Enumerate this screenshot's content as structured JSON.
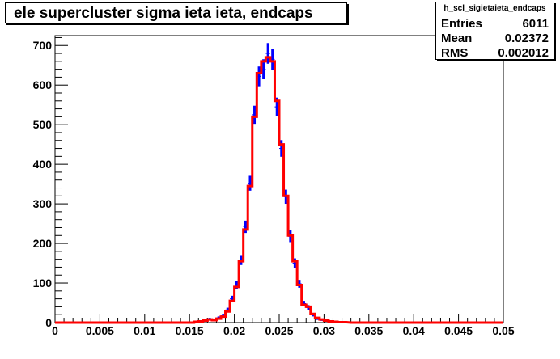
{
  "title": "ele supercluster sigma ieta ieta, endcaps",
  "stats": {
    "name": "h_scl_sigietaieta_endcaps",
    "rows": [
      {
        "label": "Entries",
        "value": "6011"
      },
      {
        "label": "Mean",
        "value": "0.02372"
      },
      {
        "label": "RMS",
        "value": "0.002012"
      }
    ]
  },
  "colors": {
    "data_errors": "#0000ff",
    "reference_hist": "#ff0000"
  },
  "chart_data": {
    "type": "line",
    "title": "ele supercluster sigma ieta ieta, endcaps",
    "xlabel": "",
    "ylabel": "",
    "xlim": [
      0,
      0.05
    ],
    "ylim": [
      0,
      725
    ],
    "xticks": [
      "0",
      "0.005",
      "0.01",
      "0.015",
      "0.02",
      "0.025",
      "0.03",
      "0.035",
      "0.04",
      "0.045",
      "0.05"
    ],
    "yticks": [
      "0",
      "100",
      "200",
      "300",
      "400",
      "500",
      "600",
      "700"
    ],
    "bin_width": 0.0005,
    "bin_edges_x": [
      0.0155,
      0.016,
      0.0165,
      0.017,
      0.0175,
      0.018,
      0.0185,
      0.019,
      0.0195,
      0.02,
      0.0205,
      0.021,
      0.0215,
      0.022,
      0.0225,
      0.023,
      0.0235,
      0.024,
      0.0245,
      0.025,
      0.0255,
      0.026,
      0.0265,
      0.027,
      0.0275,
      0.028,
      0.0285,
      0.029,
      0.0295,
      0.03,
      0.0305,
      0.031,
      0.0315,
      0.032,
      0.0325
    ],
    "series": [
      {
        "values": [
          2,
          3,
          5,
          8,
          6,
          10,
          15,
          28,
          55,
          90,
          155,
          235,
          345,
          520,
          630,
          660,
          670,
          660,
          560,
          450,
          320,
          220,
          155,
          95,
          45,
          40,
          22,
          12,
          8,
          5,
          3,
          2,
          1,
          1
        ],
        "style": "step"
      },
      {
        "values": [
          3,
          4,
          6,
          9,
          7,
          12,
          18,
          32,
          60,
          95,
          158,
          242,
          352,
          525,
          622,
          640,
          680,
          665,
          545,
          440,
          318,
          218,
          150,
          98,
          48,
          38,
          20,
          10,
          7,
          4,
          3,
          2,
          1,
          1
        ],
        "style": "error-bars"
      }
    ]
  }
}
